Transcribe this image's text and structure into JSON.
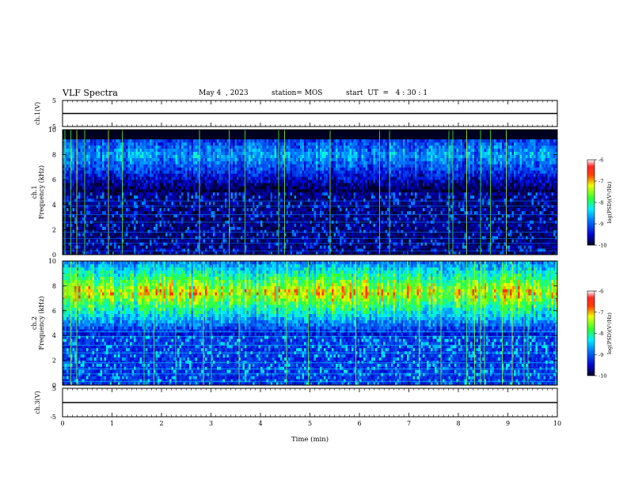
{
  "header": {
    "title": "VLF Spectra",
    "date": "May 4  , 2023",
    "station": "station= MOS",
    "start": "start  UT  =   4 : 30 : 1"
  },
  "colors": {
    "spectrogram_scale": [
      "#000033",
      "#0000c8",
      "#0070ff",
      "#00e8ff",
      "#40ff40",
      "#e8ff00",
      "#ff7000",
      "#ff2020",
      "#f4f4f4"
    ]
  },
  "chart_data": [
    {
      "type": "line",
      "ylabel": "ch.1(V)",
      "yticks": [
        "5",
        "-5"
      ],
      "ylim": [
        -5,
        5
      ],
      "x": [
        0,
        10
      ],
      "series": [
        {
          "values": [
            0,
            0
          ]
        }
      ]
    },
    {
      "type": "heatmap",
      "ylabel": "ch.1\nFrequency (kHz)",
      "yticks": [
        "0",
        "2",
        "4",
        "6",
        "8",
        "10"
      ],
      "ylim": [
        0,
        10
      ],
      "xlim": [
        0,
        10
      ],
      "colorbar": {
        "label": "log(PSD)(V²/Hz)",
        "ticks": [
          "-6",
          "-7",
          "-8",
          "-9",
          "-10"
        ],
        "range": [
          -10,
          -6
        ]
      },
      "band_kHz": [
        5,
        10
      ],
      "band_peak_log_psd": -8.3,
      "background_log_psd": -10
    },
    {
      "type": "heatmap",
      "ylabel": "ch.2\nFrequency (kHz)",
      "yticks": [
        "0",
        "2",
        "4",
        "6",
        "8",
        "10"
      ],
      "ylim": [
        0,
        10
      ],
      "xlim": [
        0,
        10
      ],
      "colorbar": {
        "label": "log(PSD)(V²/Hz)",
        "ticks": [
          "-6",
          "-7",
          "-8",
          "-9",
          "-10"
        ],
        "range": [
          -10,
          -6
        ]
      },
      "band_kHz": [
        4,
        10
      ],
      "band_peak_log_psd": -6.6,
      "background_log_psd": -9.5
    },
    {
      "type": "line",
      "ylabel": "ch.3(V)",
      "yticks": [
        "5",
        "-5"
      ],
      "ylim": [
        -5,
        5
      ],
      "x": [
        0,
        10
      ],
      "series": [
        {
          "values": [
            0,
            0
          ]
        }
      ]
    }
  ],
  "x_axis": {
    "label": "Time  (min)",
    "ticks": [
      "0",
      "1",
      "2",
      "3",
      "4",
      "5",
      "6",
      "7",
      "8",
      "9",
      "10"
    ],
    "range": [
      0,
      10
    ]
  }
}
